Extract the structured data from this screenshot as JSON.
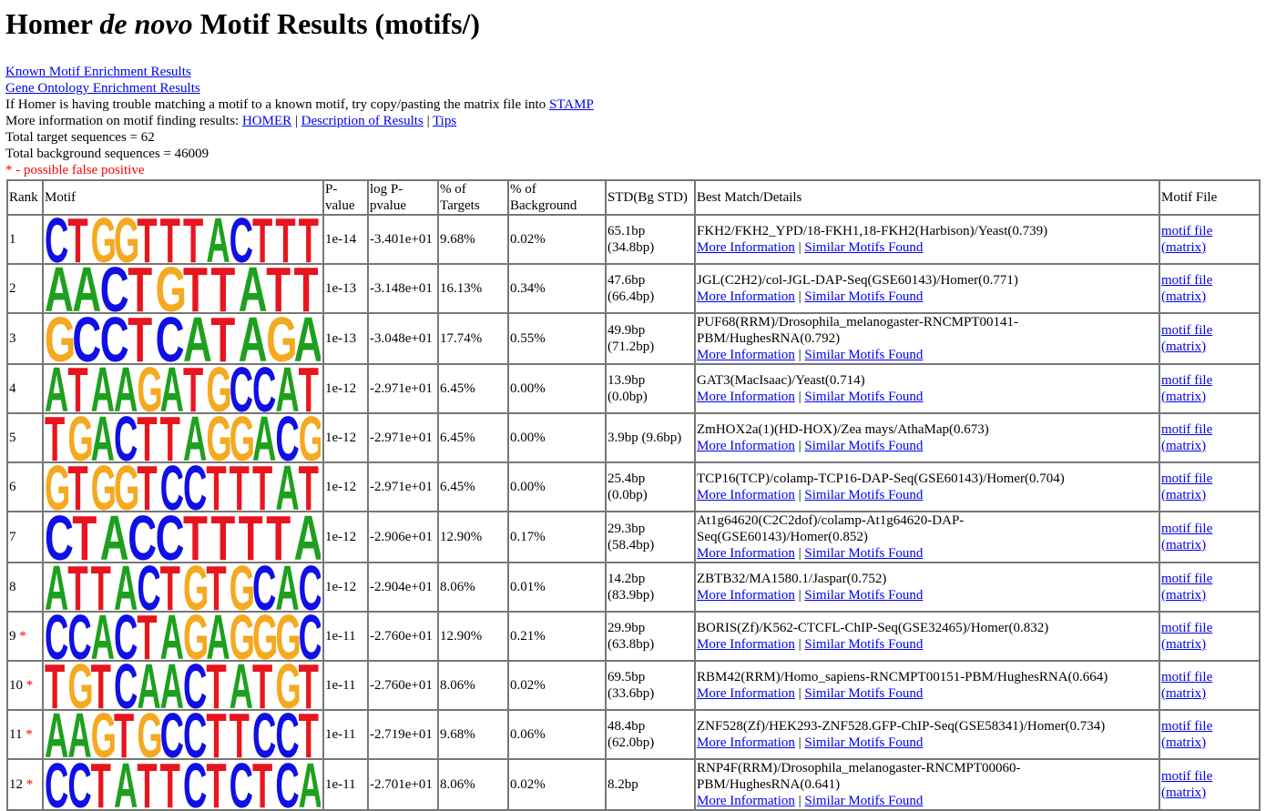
{
  "page": {
    "title_pre": "Homer ",
    "title_em": "de novo",
    "title_post": " Motif Results (motifs/)"
  },
  "links": {
    "known": "Known Motif Enrichment Results",
    "go": "Gene Ontology Enrichment Results"
  },
  "stamp_line": {
    "text": "If Homer is having trouble matching a motif to a known motif, try copy/pasting the matrix file into ",
    "link": "STAMP"
  },
  "info_line": {
    "text": "More information on motif finding results: ",
    "homer": "HOMER",
    "sep": " | ",
    "desc": "Description of Results",
    "tips": "Tips"
  },
  "totals": {
    "target": "Total target sequences = 62",
    "background": "Total background sequences = 46009"
  },
  "false_positive_note": "* - possible false positive",
  "colors": {
    "A": "#1ea01e",
    "C": "#0f0fe6",
    "G": "#f5a91f",
    "T": "#e8141e"
  },
  "table": {
    "headers": {
      "rank": "Rank",
      "motif": "Motif",
      "p1": "P-",
      "p2": "value",
      "log1": "log P-",
      "log2": "pvalue",
      "tgt1": "% of",
      "tgt2": "Targets",
      "bg1": "% of",
      "bg2": "Background",
      "std": "STD(Bg STD)",
      "best": "Best Match/Details",
      "file": "Motif File"
    },
    "more_info": "More Information",
    "sep": " | ",
    "similar": "Similar Motifs Found",
    "motif_file": "motif file",
    "matrix": "(matrix)",
    "rows": [
      {
        "rank": "1",
        "star": "",
        "logo": "CTGGTTTACTTT",
        "p": "1e-14",
        "logp": "-3.401e+01",
        "tgt": "9.68%",
        "bg": "0.02%",
        "std1": "65.1bp",
        "std2": "(34.8bp)",
        "best1": "FKH2/FKH2_YPD/18-FKH1,18-FKH2(Harbison)/Yeast(0.739)",
        "best2": ""
      },
      {
        "rank": "2",
        "star": "",
        "logo": "AACTGTTATT",
        "p": "1e-13",
        "logp": "-3.148e+01",
        "tgt": "16.13%",
        "bg": "0.34%",
        "std1": "47.6bp",
        "std2": "(66.4bp)",
        "best1": "JGL(C2H2)/col-JGL-DAP-Seq(GSE60143)/Homer(0.771)",
        "best2": ""
      },
      {
        "rank": "3",
        "star": "",
        "logo": "GCCTCATAGA",
        "p": "1e-13",
        "logp": "-3.048e+01",
        "tgt": "17.74%",
        "bg": "0.55%",
        "std1": "49.9bp",
        "std2": "(71.2bp)",
        "best1": "PUF68(RRM)/Drosophila_melanogaster-RNCMPT00141-",
        "best2": "PBM/HughesRNA(0.792)"
      },
      {
        "rank": "4",
        "star": "",
        "logo": "ATAAGATGCCAT",
        "p": "1e-12",
        "logp": "-2.971e+01",
        "tgt": "6.45%",
        "bg": "0.00%",
        "std1": "13.9bp",
        "std2": "(0.0bp)",
        "best1": "GAT3(MacIsaac)/Yeast(0.714)",
        "best2": ""
      },
      {
        "rank": "5",
        "star": "",
        "logo": "TGACTTAGGACG",
        "p": "1e-12",
        "logp": "-2.971e+01",
        "tgt": "6.45%",
        "bg": "0.00%",
        "std1": "3.9bp (9.6bp)",
        "std2": "",
        "best1": "ZmHOX2a(1)(HD-HOX)/Zea mays/AthaMap(0.673)",
        "best2": ""
      },
      {
        "rank": "6",
        "star": "",
        "logo": "GTGGTCCTTTAT",
        "p": "1e-12",
        "logp": "-2.971e+01",
        "tgt": "6.45%",
        "bg": "0.00%",
        "std1": "25.4bp",
        "std2": "(0.0bp)",
        "best1": "TCP16(TCP)/colamp-TCP16-DAP-Seq(GSE60143)/Homer(0.704)",
        "best2": ""
      },
      {
        "rank": "7",
        "star": "",
        "logo": "CTACCTTTTA",
        "p": "1e-12",
        "logp": "-2.906e+01",
        "tgt": "12.90%",
        "bg": "0.17%",
        "std1": "29.3bp",
        "std2": "(58.4bp)",
        "best1": "At1g64620(C2C2dof)/colamp-At1g64620-DAP-",
        "best2": "Seq(GSE60143)/Homer(0.852)"
      },
      {
        "rank": "8",
        "star": "",
        "logo": "ATTACTGTGCAC",
        "p": "1e-12",
        "logp": "-2.904e+01",
        "tgt": "8.06%",
        "bg": "0.01%",
        "std1": "14.2bp",
        "std2": "(83.9bp)",
        "best1": "ZBTB32/MA1580.1/Jaspar(0.752)",
        "best2": ""
      },
      {
        "rank": "9",
        "star": "*",
        "logo": "CCACTAGAGGGC",
        "p": "1e-11",
        "logp": "-2.760e+01",
        "tgt": "12.90%",
        "bg": "0.21%",
        "std1": "29.9bp",
        "std2": "(63.8bp)",
        "best1": "BORIS(Zf)/K562-CTCFL-ChIP-Seq(GSE32465)/Homer(0.832)",
        "best2": ""
      },
      {
        "rank": "10",
        "star": "*",
        "logo": "TGTCAACTATGT",
        "p": "1e-11",
        "logp": "-2.760e+01",
        "tgt": "8.06%",
        "bg": "0.02%",
        "std1": "69.5bp",
        "std2": "(33.6bp)",
        "best1": "RBM42(RRM)/Homo_sapiens-RNCMPT00151-PBM/HughesRNA(0.664)",
        "best2": ""
      },
      {
        "rank": "11",
        "star": "*",
        "logo": "AAGTGCCTTCCT",
        "p": "1e-11",
        "logp": "-2.719e+01",
        "tgt": "9.68%",
        "bg": "0.06%",
        "std1": "48.4bp",
        "std2": "(62.0bp)",
        "best1": "ZNF528(Zf)/HEK293-ZNF528.GFP-ChIP-Seq(GSE58341)/Homer(0.734)",
        "best2": ""
      },
      {
        "rank": "12",
        "star": "*",
        "logo": "CCTATTCTCTCA",
        "p": "1e-11",
        "logp": "-2.701e+01",
        "tgt": "8.06%",
        "bg": "0.02%",
        "std1": "8.2bp",
        "std2": "",
        "best1": "RNP4F(RRM)/Drosophila_melanogaster-RNCMPT00060-",
        "best2": "PBM/HughesRNA(0.641)"
      }
    ]
  }
}
